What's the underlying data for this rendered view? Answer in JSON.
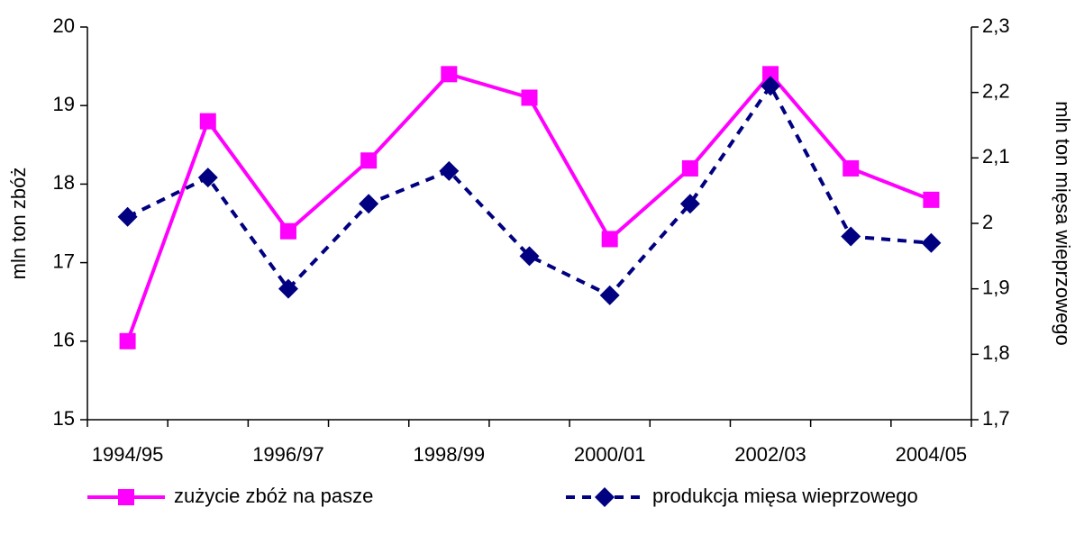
{
  "chart_data": {
    "type": "line",
    "y_label": "mln ton zbóż",
    "y2_label": "mln ton mięsa wieprzowego",
    "categories": [
      "1994/95",
      null,
      "1996/97",
      null,
      "1998/99",
      null,
      "2000/01",
      null,
      "2002/03",
      null,
      "2004/05"
    ],
    "series": [
      {
        "name": "zużycie zbóż na pasze",
        "color": "#ff00ff",
        "marker": "square",
        "line_style": "solid",
        "values": [
          16,
          18.8,
          17.4,
          18.3,
          19.4,
          19.1,
          17.3,
          18.2,
          19.4,
          18.2,
          17.8
        ]
      },
      {
        "name": "produkcja mięsa wieprzowego",
        "color": "#000080",
        "marker": "diamond",
        "line_style": "dashed",
        "axis": "y2",
        "values": [
          2.01,
          2.07,
          1.9,
          2.03,
          2.08,
          1.95,
          1.89,
          2.03,
          2.21,
          1.98,
          1.97
        ]
      }
    ],
    "ylim": [
      15,
      20
    ],
    "yticks": [
      15,
      16,
      17,
      18,
      19,
      20
    ],
    "y2lim": [
      1.7,
      2.3
    ],
    "y2ticks": [
      {
        "value": 1.7,
        "label": "1,7"
      },
      {
        "value": 1.8,
        "label": "1,8"
      },
      {
        "value": 1.9,
        "label": "1,9"
      },
      2,
      {
        "value": 2.1,
        "label": "2,1"
      },
      {
        "value": 2.2,
        "label": "2,2"
      },
      {
        "value": 2.3,
        "label": "2,3"
      }
    ],
    "legend": "bottom",
    "grid": false
  }
}
